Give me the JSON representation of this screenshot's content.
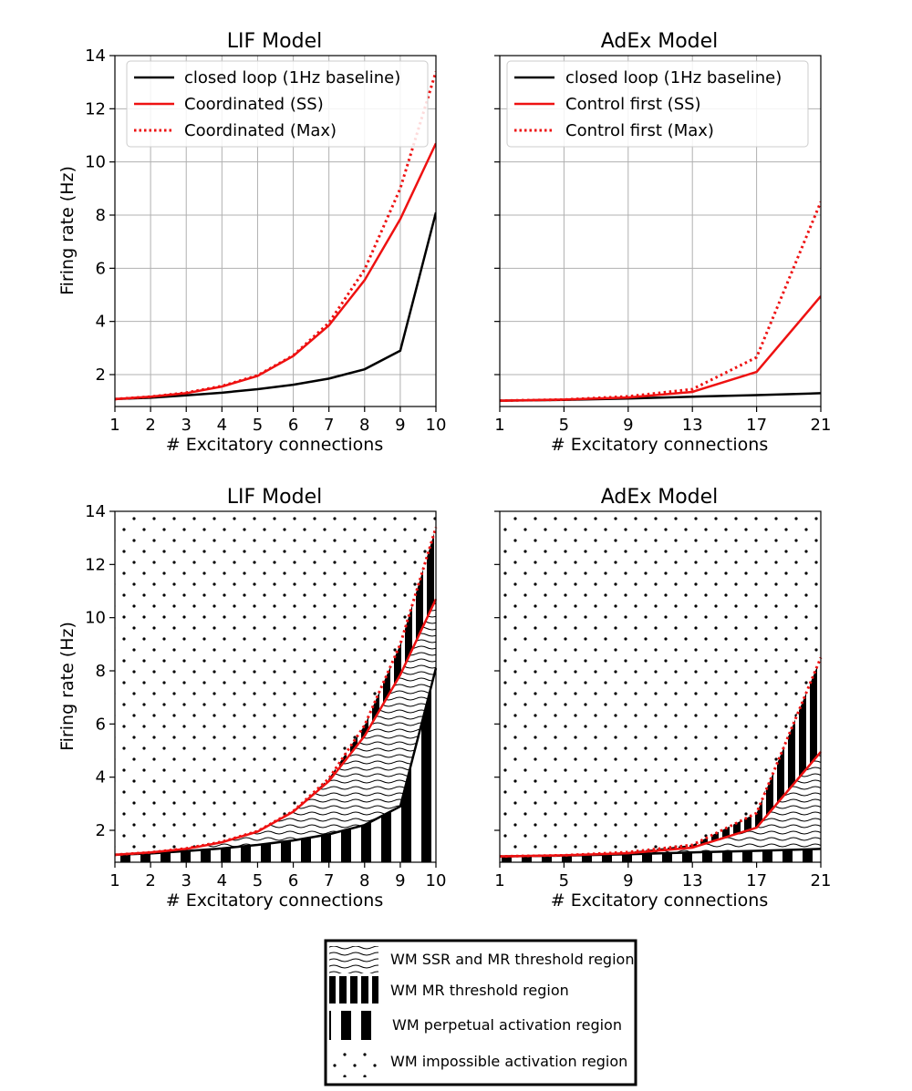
{
  "colors": {
    "red": "#ee1111",
    "black": "#000000",
    "grid": "#b0b0b0"
  },
  "chart_data": [
    {
      "type": "line",
      "title": "LIF Model",
      "xlabel": "# Excitatory connections",
      "ylabel": "Firing rate (Hz)",
      "xlim": [
        1,
        10
      ],
      "ylim": [
        0.8,
        14
      ],
      "xticks": [
        1,
        2,
        3,
        4,
        5,
        6,
        7,
        8,
        9,
        10
      ],
      "yticks": [
        2,
        4,
        6,
        8,
        10,
        12,
        14
      ],
      "grid": true,
      "legend_position": "top-left",
      "x": [
        1,
        2,
        3,
        4,
        5,
        6,
        7,
        8,
        9,
        10
      ],
      "series": [
        {
          "name": "closed loop (1Hz baseline)",
          "style": "solid",
          "color": "black",
          "values": [
            1.08,
            1.13,
            1.22,
            1.32,
            1.45,
            1.62,
            1.85,
            2.2,
            2.9,
            8.1
          ]
        },
        {
          "name": "Coordinated (SS)",
          "style": "solid",
          "color": "red",
          "values": [
            1.08,
            1.17,
            1.3,
            1.55,
            1.95,
            2.7,
            3.85,
            5.55,
            7.85,
            10.7
          ]
        },
        {
          "name": "Coordinated (Max)",
          "style": "dotted",
          "color": "red",
          "values": [
            1.08,
            1.17,
            1.32,
            1.57,
            1.97,
            2.72,
            3.95,
            5.95,
            9.0,
            13.4
          ]
        }
      ]
    },
    {
      "type": "line",
      "title": "AdEx Model",
      "xlabel": "# Excitatory connections",
      "ylabel": "",
      "xlim": [
        1,
        21
      ],
      "ylim": [
        0.8,
        14
      ],
      "xticks": [
        1,
        5,
        9,
        13,
        17,
        21
      ],
      "yticks": [
        2,
        4,
        6,
        8,
        10,
        12,
        14
      ],
      "grid": true,
      "legend_position": "top-left",
      "x": [
        1,
        5,
        9,
        13,
        17,
        21
      ],
      "series": [
        {
          "name": "closed loop (1Hz baseline)",
          "style": "solid",
          "color": "black",
          "values": [
            1.02,
            1.05,
            1.1,
            1.17,
            1.23,
            1.3
          ]
        },
        {
          "name": "Control first (SS)",
          "style": "solid",
          "color": "red",
          "values": [
            1.02,
            1.06,
            1.14,
            1.35,
            2.1,
            4.95
          ]
        },
        {
          "name": "Control first (Max)",
          "style": "dotted",
          "color": "red",
          "values": [
            1.02,
            1.06,
            1.18,
            1.45,
            2.65,
            8.5
          ]
        }
      ]
    },
    {
      "type": "area",
      "title": "LIF Model",
      "xlabel": "# Excitatory connections",
      "ylabel": "Firing rate (Hz)",
      "xlim": [
        1,
        10
      ],
      "ylim": [
        0.8,
        14
      ],
      "xticks": [
        1,
        2,
        3,
        4,
        5,
        6,
        7,
        8,
        9,
        10
      ],
      "yticks": [
        2,
        4,
        6,
        8,
        10,
        12,
        14
      ],
      "grid": false,
      "x": [
        1,
        2,
        3,
        4,
        5,
        6,
        7,
        8,
        9,
        10
      ],
      "baseline": [
        1.08,
        1.13,
        1.22,
        1.32,
        1.45,
        1.62,
        1.85,
        2.2,
        2.9,
        8.1
      ],
      "ss": [
        1.08,
        1.17,
        1.3,
        1.55,
        1.95,
        2.7,
        3.85,
        5.55,
        7.85,
        10.7
      ],
      "max": [
        1.08,
        1.17,
        1.32,
        1.57,
        1.97,
        2.72,
        3.95,
        5.95,
        9.0,
        13.4
      ]
    },
    {
      "type": "area",
      "title": "AdEx Model",
      "xlabel": "# Excitatory connections",
      "ylabel": "",
      "xlim": [
        1,
        21
      ],
      "ylim": [
        0.8,
        14
      ],
      "xticks": [
        1,
        5,
        9,
        13,
        17,
        21
      ],
      "yticks": [
        2,
        4,
        6,
        8,
        10,
        12,
        14
      ],
      "grid": false,
      "x": [
        1,
        5,
        9,
        13,
        17,
        21
      ],
      "baseline": [
        1.02,
        1.05,
        1.1,
        1.17,
        1.23,
        1.3
      ],
      "ss": [
        1.02,
        1.06,
        1.14,
        1.35,
        2.1,
        4.95
      ],
      "max": [
        1.02,
        1.06,
        1.18,
        1.45,
        2.65,
        8.5
      ]
    }
  ],
  "region_legend": {
    "items": [
      {
        "label": "WM SSR and MR threshold region",
        "pattern": "wavy"
      },
      {
        "label": "WM MR threshold region",
        "pattern": "bars"
      },
      {
        "label": "WM perpetual activation region",
        "pattern": "wide-bars"
      },
      {
        "label": "WM impossible activation region",
        "pattern": "dots"
      }
    ]
  }
}
